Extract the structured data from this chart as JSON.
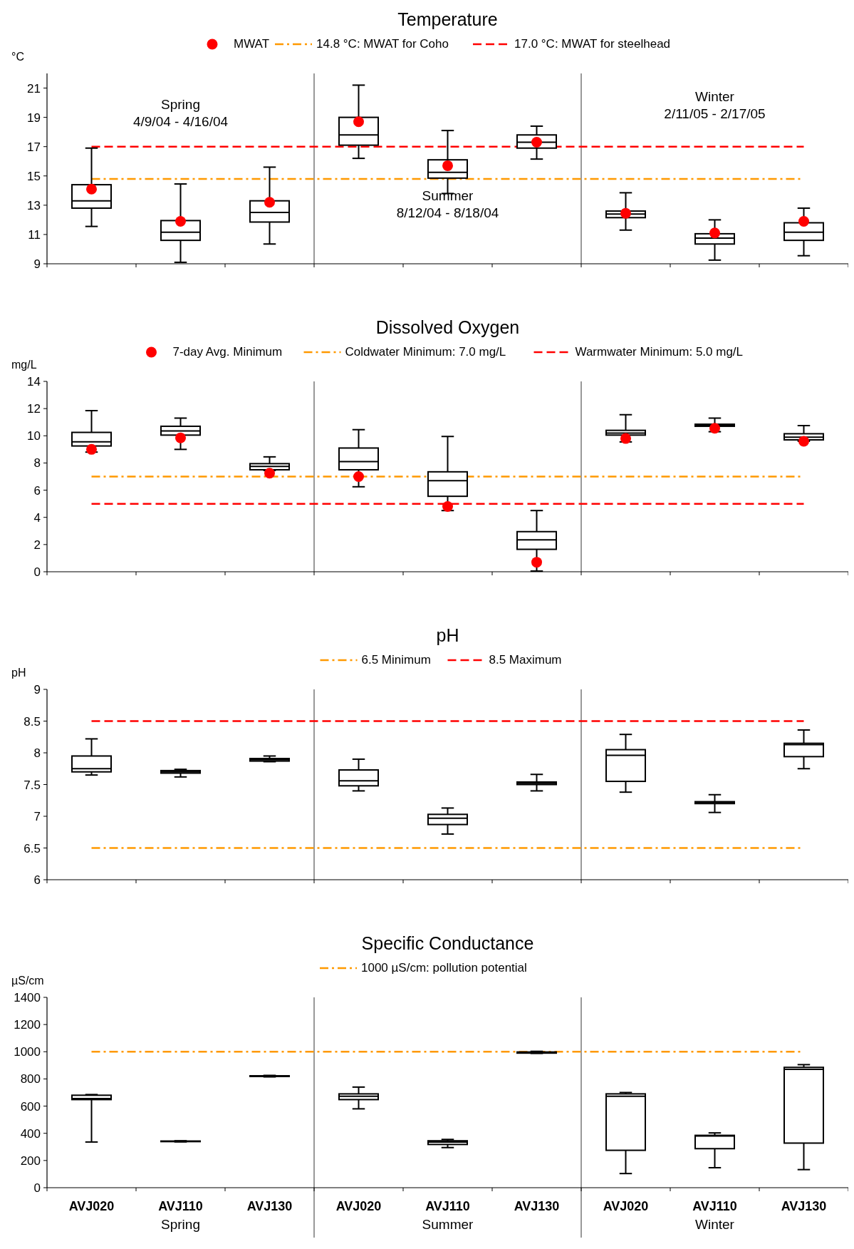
{
  "chart_data": [
    {
      "type": "box",
      "title": "Temperature",
      "ylabel": "°C",
      "categories": [
        null,
        null,
        null,
        null,
        null,
        null,
        null,
        null,
        null
      ],
      "ylim": [
        9,
        22
      ],
      "yticks": [
        9,
        11,
        13,
        15,
        17,
        19,
        21
      ],
      "tick_labels": "y",
      "legend": "top",
      "grid": false,
      "series": [
        {
          "color": "#000000",
          "boxes": [
            {
              "low": 11.55,
              "q1": 12.8,
              "median": 13.3,
              "q3": 14.4,
              "high": 16.9
            },
            {
              "low": 9.1,
              "q1": 10.6,
              "median": 11.15,
              "q3": 11.95,
              "high": 14.45
            },
            {
              "low": 10.35,
              "q1": 11.85,
              "median": 12.5,
              "q3": 13.3,
              "high": 15.6
            },
            {
              "low": 16.2,
              "q1": 17.1,
              "median": 17.8,
              "q3": 19.0,
              "high": 21.2
            },
            {
              "low": 13.8,
              "q1": 14.85,
              "median": 15.25,
              "q3": 16.1,
              "high": 18.1
            },
            {
              "low": 16.15,
              "q1": 16.9,
              "median": 17.3,
              "q3": 17.8,
              "high": 18.4
            },
            {
              "low": 11.3,
              "q1": 12.15,
              "median": 12.4,
              "q3": 12.6,
              "high": 13.85
            },
            {
              "low": 9.25,
              "q1": 10.35,
              "median": 10.75,
              "q3": 11.05,
              "high": 12.0
            },
            {
              "low": 9.55,
              "q1": 10.6,
              "median": 11.15,
              "q3": 11.8,
              "high": 12.8
            }
          ]
        },
        {
          "type": "scatter",
          "name": "MWAT",
          "color": "#ff0000",
          "marker": "circle",
          "values": [
            14.1,
            11.9,
            13.2,
            18.7,
            15.7,
            17.3,
            12.45,
            11.1,
            11.9
          ]
        }
      ],
      "ref_lines": [
        {
          "axis": "y",
          "value": 14.8,
          "label": "14.8 °C: MWAT for Coho",
          "color": "#ff9900",
          "line_style": "dashdot"
        },
        {
          "axis": "y",
          "value": 17.0,
          "label": "17.0 °C: MWAT for steelhead",
          "color": "#ff0000",
          "line_style": "dashed"
        }
      ],
      "annotations": [
        "Spring\n4/9/04 - 4/16/04",
        "Summer\n8/12/04 - 8/18/04",
        "Winter\n2/11/05 - 2/17/05"
      ]
    },
    {
      "type": "box",
      "title": "Dissolved Oxygen",
      "ylabel": "mg/L",
      "categories": [
        null,
        null,
        null,
        null,
        null,
        null,
        null,
        null,
        null
      ],
      "ylim": [
        0,
        14
      ],
      "yticks": [
        0,
        2,
        4,
        6,
        8,
        10,
        12,
        14
      ],
      "tick_labels": "y",
      "legend": "top",
      "grid": false,
      "series": [
        {
          "color": "#000000",
          "boxes": [
            {
              "low": 8.8,
              "q1": 9.25,
              "median": 9.55,
              "q3": 10.25,
              "high": 11.85
            },
            {
              "low": 9.0,
              "q1": 10.05,
              "median": 10.35,
              "q3": 10.7,
              "high": 11.3
            },
            {
              "low": 7.45,
              "q1": 7.5,
              "median": 7.75,
              "q3": 7.95,
              "high": 8.45
            },
            {
              "low": 6.25,
              "q1": 7.5,
              "median": 8.1,
              "q3": 9.1,
              "high": 10.45
            },
            {
              "low": 4.5,
              "q1": 5.55,
              "median": 6.7,
              "q3": 7.35,
              "high": 9.95
            },
            {
              "low": 0.05,
              "q1": 1.65,
              "median": 2.35,
              "q3": 2.95,
              "high": 4.5
            },
            {
              "low": 9.55,
              "q1": 10.05,
              "median": 10.2,
              "q3": 10.4,
              "high": 11.55
            },
            {
              "low": 10.3,
              "q1": 10.7,
              "median": 10.75,
              "q3": 10.85,
              "high": 11.3
            },
            {
              "low": 9.6,
              "q1": 9.7,
              "median": 9.9,
              "q3": 10.15,
              "high": 10.75
            }
          ]
        },
        {
          "type": "scatter",
          "name": "7-day Avg. Minimum",
          "color": "#ff0000",
          "marker": "circle",
          "values": [
            9.0,
            9.85,
            7.25,
            7.0,
            4.8,
            0.7,
            9.8,
            10.55,
            9.6
          ]
        }
      ],
      "ref_lines": [
        {
          "axis": "y",
          "value": 7.0,
          "label": "Coldwater Minimum: 7.0 mg/L",
          "color": "#ff9900",
          "line_style": "dashdot"
        },
        {
          "axis": "y",
          "value": 5.0,
          "label": "Warmwater Minimum: 5.0 mg/L",
          "color": "#ff0000",
          "line_style": "dashed"
        }
      ]
    },
    {
      "type": "box",
      "title": "pH",
      "ylabel": "pH",
      "categories": [
        null,
        null,
        null,
        null,
        null,
        null,
        null,
        null,
        null
      ],
      "ylim": [
        6,
        9
      ],
      "yticks": [
        6,
        6.5,
        7,
        7.5,
        8,
        8.5,
        9
      ],
      "tick_labels": "y",
      "legend": "top",
      "grid": false,
      "series": [
        {
          "color": "#000000",
          "boxes": [
            {
              "low": 7.65,
              "q1": 7.7,
              "median": 7.75,
              "q3": 7.95,
              "high": 8.22
            },
            {
              "low": 7.62,
              "q1": 7.68,
              "median": 7.7,
              "q3": 7.72,
              "high": 7.74
            },
            {
              "low": 7.86,
              "q1": 7.87,
              "median": 7.89,
              "q3": 7.91,
              "high": 7.95
            },
            {
              "low": 7.4,
              "q1": 7.48,
              "median": 7.56,
              "q3": 7.73,
              "high": 7.9
            },
            {
              "low": 6.72,
              "q1": 6.87,
              "median": 6.97,
              "q3": 7.03,
              "high": 7.13
            },
            {
              "low": 7.4,
              "q1": 7.5,
              "median": 7.52,
              "q3": 7.54,
              "high": 7.66
            },
            {
              "low": 7.38,
              "q1": 7.55,
              "median": 7.96,
              "q3": 8.05,
              "high": 8.29
            },
            {
              "low": 7.06,
              "q1": 7.2,
              "median": 7.22,
              "q3": 7.23,
              "high": 7.34
            },
            {
              "low": 7.75,
              "q1": 7.94,
              "median": 8.13,
              "q3": 8.15,
              "high": 8.36
            }
          ]
        }
      ],
      "ref_lines": [
        {
          "axis": "y",
          "value": 6.5,
          "label": "6.5 Minimum",
          "color": "#ff9900",
          "line_style": "dashdot"
        },
        {
          "axis": "y",
          "value": 8.5,
          "label": "8.5 Maximum",
          "color": "#ff0000",
          "line_style": "dashed"
        }
      ]
    },
    {
      "type": "box",
      "title": "Specific Conductance",
      "ylabel": "µS/cm",
      "categories": [
        "AVJ020",
        "AVJ110",
        "AVJ130",
        "AVJ020",
        "AVJ110",
        "AVJ130",
        "AVJ020",
        "AVJ110",
        "AVJ130"
      ],
      "ylim": [
        0,
        1400
      ],
      "yticks": [
        0,
        200,
        400,
        600,
        800,
        1000,
        1200,
        1400
      ],
      "legend": "top",
      "grid": false,
      "series": [
        {
          "color": "#000000",
          "boxes": [
            {
              "low": 336,
              "q1": 648,
              "median": 655,
              "q3": 680,
              "high": 685
            },
            {
              "low": 337,
              "q1": 339,
              "median": 341,
              "q3": 343,
              "high": 345
            },
            {
              "low": 815,
              "q1": 818,
              "median": 820,
              "q3": 823,
              "high": 826
            },
            {
              "low": 580,
              "q1": 648,
              "median": 672,
              "q3": 690,
              "high": 740
            },
            {
              "low": 295,
              "q1": 318,
              "median": 336,
              "q3": 345,
              "high": 355
            },
            {
              "low": 988,
              "q1": 990,
              "median": 995,
              "q3": 998,
              "high": 1003
            },
            {
              "low": 104,
              "q1": 275,
              "median": 672,
              "q3": 690,
              "high": 700
            },
            {
              "low": 147,
              "q1": 287,
              "median": 380,
              "q3": 385,
              "high": 403
            },
            {
              "low": 133,
              "q1": 328,
              "median": 870,
              "q3": 885,
              "high": 905
            }
          ]
        }
      ],
      "ref_lines": [
        {
          "axis": "y",
          "value": 1000,
          "label": "1000 µS/cm: pollution potential",
          "color": "#ff9900",
          "line_style": "dashdot"
        }
      ],
      "annotations": [
        "Spring",
        "Summer",
        "Winter"
      ]
    }
  ]
}
